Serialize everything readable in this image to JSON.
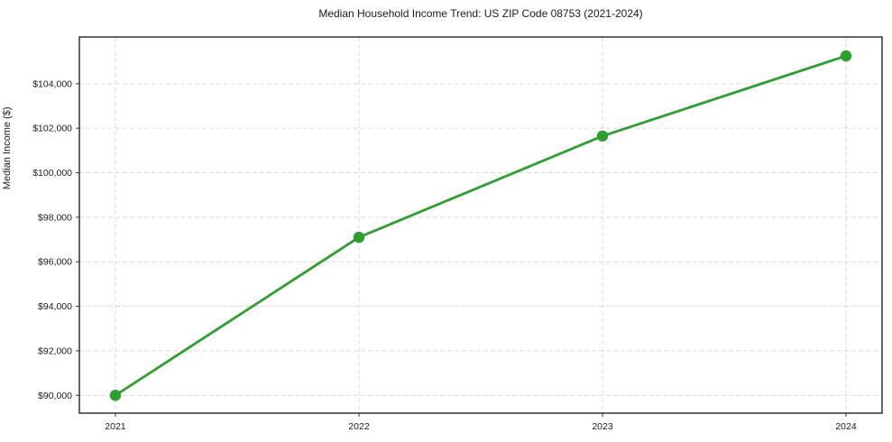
{
  "chart_data": {
    "type": "line",
    "title": "Median Household Income Trend: US ZIP Code 08753 (2021-2024)",
    "xlabel": "",
    "ylabel": "Median Income ($)",
    "x": [
      2021,
      2022,
      2023,
      2024
    ],
    "xtick_labels": [
      "2021",
      "2022",
      "2023",
      "2024"
    ],
    "series": [
      {
        "name": "Median Household Income",
        "values": [
          90000,
          97100,
          101650,
          105250
        ]
      }
    ],
    "yticks": [
      90000,
      92000,
      94000,
      96000,
      98000,
      100000,
      102000,
      104000
    ],
    "ytick_labels": [
      "$90,000",
      "$92,000",
      "$94,000",
      "$96,000",
      "$98,000",
      "$100,000",
      "$102,000",
      "$104,000"
    ],
    "xlim": [
      2020.852,
      2024.148
    ],
    "ylim": [
      89200,
      106100
    ],
    "grid": true,
    "legend_position": "none",
    "line_color": "#2ca02c",
    "marker": "circle",
    "background_color": "#ffffff",
    "grid_color": "#d9d9d9"
  }
}
